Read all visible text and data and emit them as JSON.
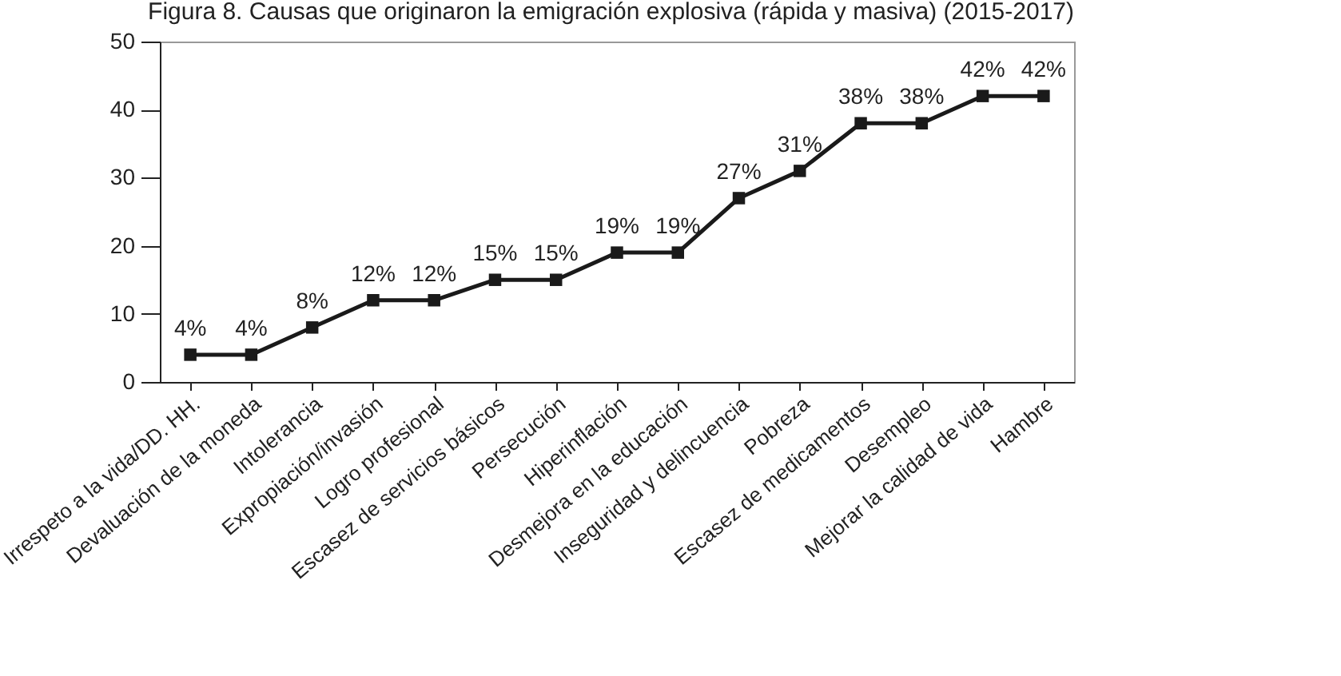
{
  "chart_data": {
    "type": "line",
    "title": "Figura 8. Causas que originaron la emigración explosiva (rápida y masiva) (2015-2017)",
    "categories": [
      "Irrespeto a la vida/DD. HH.",
      "Devaluación de la moneda",
      "Intolerancia",
      "Expropiación/invasión",
      "Logro profesional",
      "Escasez de servicios básicos",
      "Persecución",
      "Hiperinflación",
      "Desmejora en la educación",
      "Inseguridad y delincuencia",
      "Pobreza",
      "Escasez de medicamentos",
      "Desempleo",
      "Mejorar la calidad de vida",
      "Hambre"
    ],
    "values": [
      4,
      4,
      8,
      12,
      12,
      15,
      15,
      19,
      19,
      27,
      31,
      38,
      38,
      42,
      42
    ],
    "value_labels": [
      "4%",
      "4%",
      "8%",
      "12%",
      "12%",
      "15%",
      "15%",
      "19%",
      "19%",
      "27%",
      "31%",
      "38%",
      "38%",
      "42%",
      "42%"
    ],
    "color": "#1a1a1a",
    "ylim": [
      0,
      50
    ],
    "yticks": [
      0,
      10,
      20,
      30,
      40,
      50
    ],
    "grid": false,
    "marker": "square",
    "line_style": "solid"
  }
}
